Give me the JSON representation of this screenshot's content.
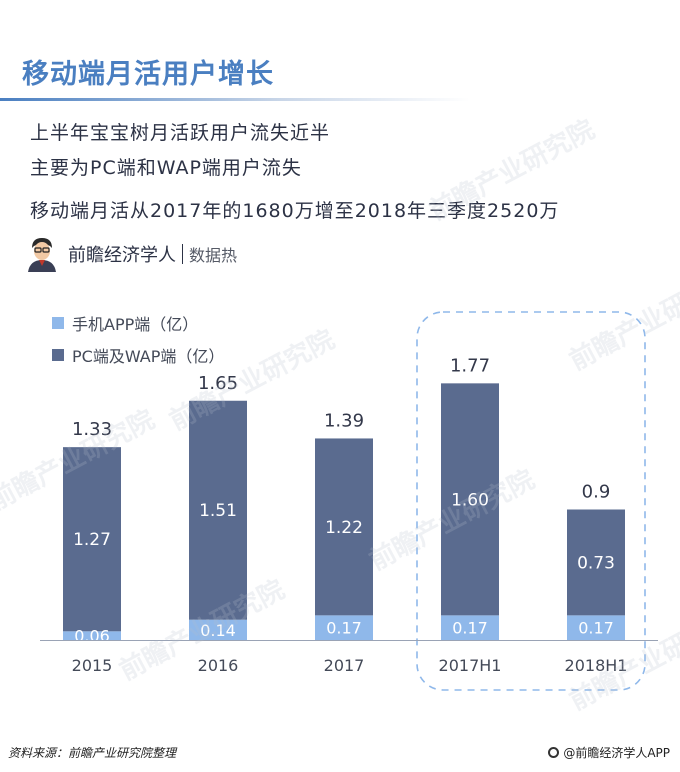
{
  "header": {
    "title": "移动端月活用户增长",
    "lines": [
      "上半年宝宝树月活跃用户流失近半",
      "主要为PC端和WAP端用户流失",
      "移动端月活从2017年的1680万增至2018年三季度2520万"
    ]
  },
  "brand": {
    "name": "前瞻经济学人",
    "tag": "数据热"
  },
  "footer": {
    "source": "资料来源：前瞻产业研究院整理",
    "app": "@前瞻经济学人APP"
  },
  "watermark": "前瞻产业研究院",
  "colors": {
    "mobile": "#8fb8ea",
    "pc_wap": "#5a6b8f",
    "title": "#4a7fc1",
    "highlight_border": "#8fb8ea"
  },
  "chart_data": {
    "type": "bar",
    "stacked": true,
    "categories": [
      "2015",
      "2016",
      "2017",
      "2017H1",
      "2018H1"
    ],
    "series": [
      {
        "name": "手机APP端（亿）",
        "values": [
          0.06,
          0.14,
          0.17,
          0.17,
          0.17
        ],
        "labels": [
          "0.06",
          "0.14",
          "0.17",
          "0.17",
          "0.17"
        ]
      },
      {
        "name": "PC端及WAP端（亿）",
        "values": [
          1.27,
          1.51,
          1.22,
          1.6,
          0.73
        ],
        "labels": [
          "1.27",
          "1.51",
          "1.22",
          "1.60",
          "0.73"
        ]
      }
    ],
    "totals": [
      1.33,
      1.65,
      1.39,
      1.77,
      0.9
    ],
    "total_labels": [
      "1.33",
      "1.65",
      "1.39",
      "1.77",
      "0.9"
    ],
    "highlighted_categories": [
      "2017H1",
      "2018H1"
    ],
    "ylim": [
      0,
      2.0
    ],
    "legend_position": "top-left",
    "grid": false
  }
}
